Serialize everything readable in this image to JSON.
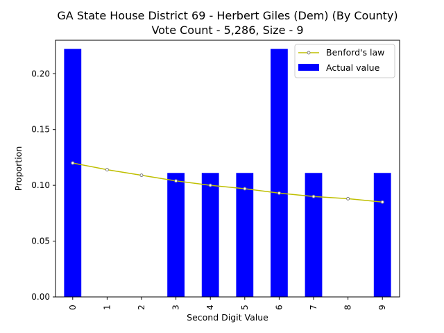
{
  "chart_data": {
    "type": "bar",
    "title_line1": "GA State House District 69 - Herbert Giles (Dem) (By County)",
    "title_line2": "Vote Count - 5,286, Size - 9",
    "xlabel": "Second Digit Value",
    "ylabel": "Proportion",
    "categories": [
      "0",
      "1",
      "2",
      "3",
      "4",
      "5",
      "6",
      "7",
      "8",
      "9"
    ],
    "ylim": [
      0,
      0.23
    ],
    "yticks": [
      0.0,
      0.05,
      0.1,
      0.15,
      0.2
    ],
    "ytick_labels": [
      "0.00",
      "0.05",
      "0.10",
      "0.15",
      "0.20"
    ],
    "grid": false,
    "legend_position": "top-right",
    "series": [
      {
        "name": "Benford's law",
        "type": "line",
        "color": "#bfbf00",
        "marker_color": "#808080",
        "values": [
          0.12,
          0.114,
          0.109,
          0.104,
          0.1,
          0.097,
          0.093,
          0.09,
          0.088,
          0.085
        ]
      },
      {
        "name": "Actual value",
        "type": "bar",
        "color": "#0000ff",
        "values": [
          0.2222,
          0.0,
          0.0,
          0.1111,
          0.1111,
          0.1111,
          0.2222,
          0.1111,
          0.0,
          0.1111
        ]
      }
    ]
  }
}
